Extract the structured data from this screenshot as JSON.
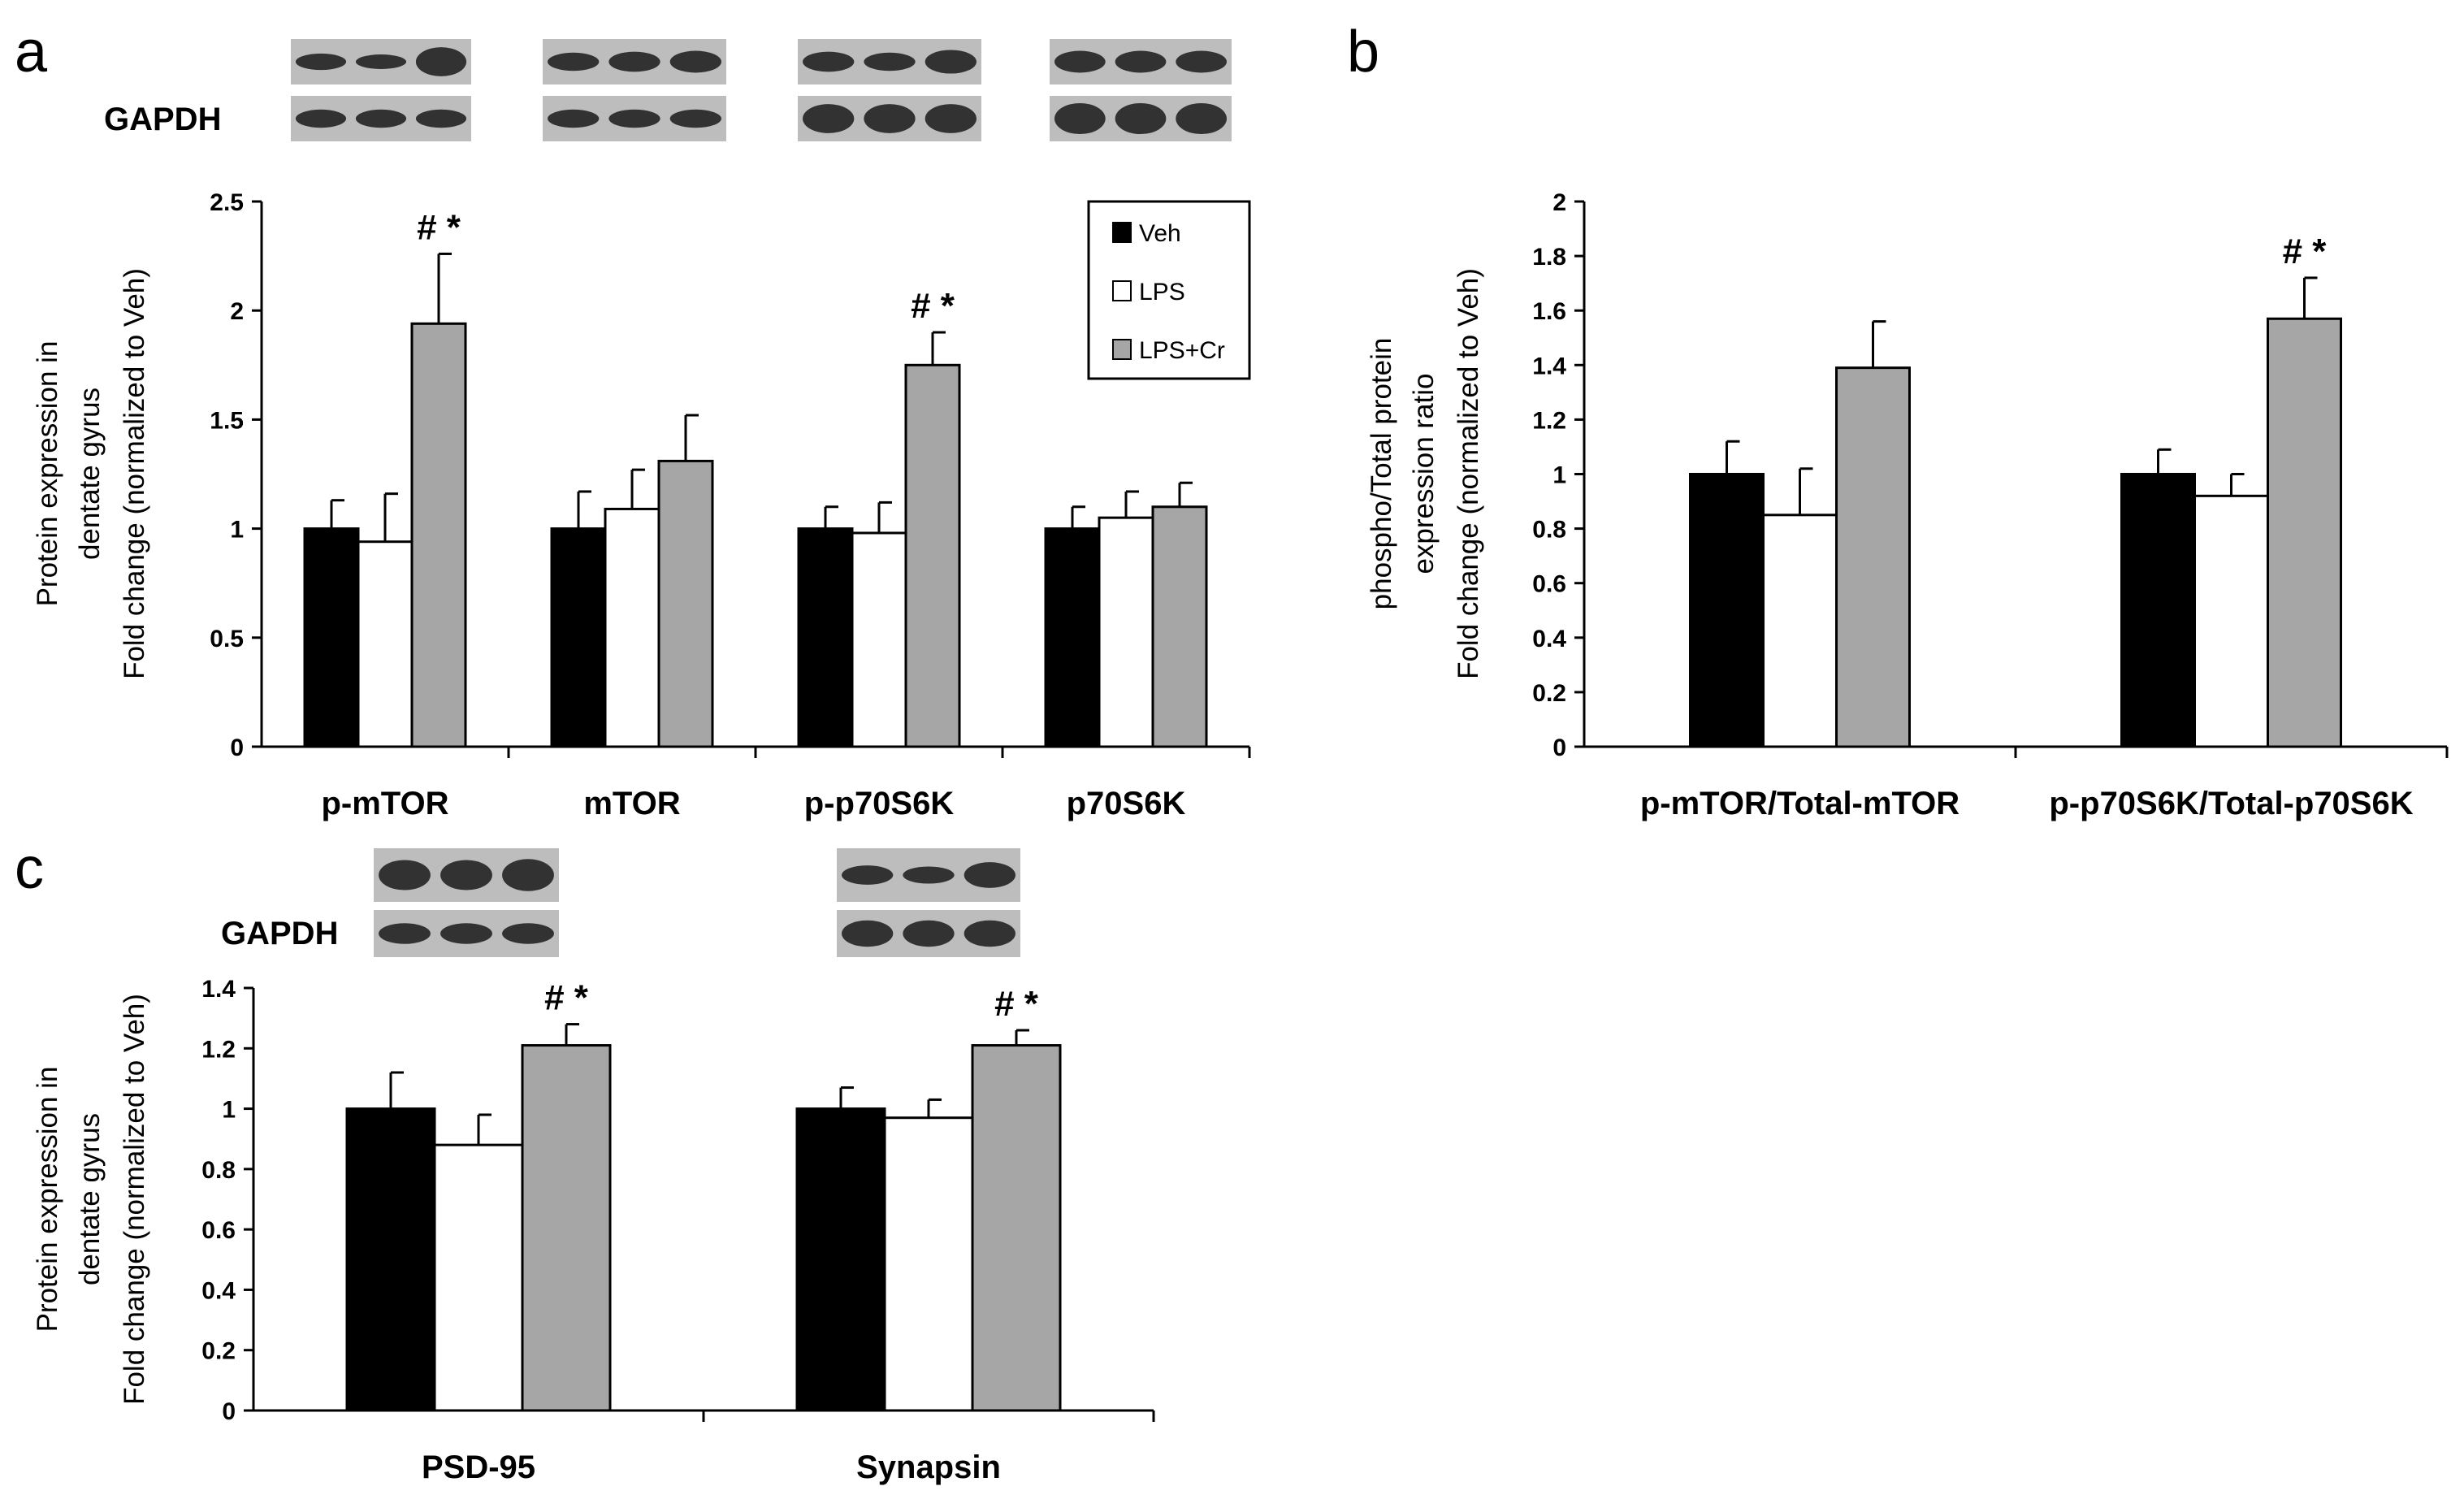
{
  "colors": {
    "Veh": "#000000",
    "LPS": "#ffffff",
    "LPS+Cr": "#a6a6a6",
    "blot_bg": "#bdbdbd",
    "band": "#1a1a1a"
  },
  "gapdh_label": "GAPDH",
  "chart_data": [
    {
      "panel": "a",
      "type": "bar",
      "categories": [
        "p-mTOR",
        "mTOR",
        "p-p70S6K",
        "p70S6K"
      ],
      "series": [
        {
          "name": "Veh",
          "values": [
            1.0,
            1.0,
            1.0,
            1.0
          ],
          "errors": [
            0.13,
            0.17,
            0.1,
            0.1
          ]
        },
        {
          "name": "LPS",
          "values": [
            0.94,
            1.09,
            0.98,
            1.05
          ],
          "errors": [
            0.22,
            0.18,
            0.14,
            0.12
          ]
        },
        {
          "name": "LPS+Cr",
          "values": [
            1.94,
            1.31,
            1.75,
            1.1
          ],
          "errors": [
            0.32,
            0.21,
            0.15,
            0.11
          ]
        }
      ],
      "significance": [
        "# *",
        "",
        "# *",
        ""
      ],
      "ylabel": [
        "Protein expression in",
        "dentate  gyrus",
        "Fold change (normalized to Veh)"
      ],
      "ylim": [
        0,
        2.5
      ],
      "yticks": [
        "0",
        "0.5",
        "1",
        "1.5",
        "2",
        "2.5"
      ],
      "legend": [
        "Veh",
        "LPS",
        "LPS+Cr"
      ],
      "legend_position": "top-right"
    },
    {
      "panel": "b",
      "type": "bar",
      "categories": [
        "p-mTOR/Total-mTOR",
        "p-p70S6K/Total-p70S6K"
      ],
      "series": [
        {
          "name": "Veh",
          "values": [
            1.0,
            1.0
          ],
          "errors": [
            0.12,
            0.09
          ]
        },
        {
          "name": "LPS",
          "values": [
            0.85,
            0.92
          ],
          "errors": [
            0.17,
            0.08
          ]
        },
        {
          "name": "LPS+Cr",
          "values": [
            1.39,
            1.57
          ],
          "errors": [
            0.17,
            0.15
          ]
        }
      ],
      "significance": [
        "",
        "# *"
      ],
      "ylabel": [
        "phospho/Total protein",
        "expression  ratio",
        "Fold change (normalized to Veh)"
      ],
      "ylim": [
        0,
        2
      ],
      "yticks": [
        "0",
        "0.2",
        "0.4",
        "0.6",
        "0.8",
        "1",
        "1.2",
        "1.4",
        "1.6",
        "1.8",
        "2"
      ]
    },
    {
      "panel": "c",
      "type": "bar",
      "categories": [
        "PSD-95",
        "Synapsin"
      ],
      "series": [
        {
          "name": "Veh",
          "values": [
            1.0,
            1.0
          ],
          "errors": [
            0.12,
            0.07
          ]
        },
        {
          "name": "LPS",
          "values": [
            0.88,
            0.97
          ],
          "errors": [
            0.1,
            0.06
          ]
        },
        {
          "name": "LPS+Cr",
          "values": [
            1.21,
            1.21
          ],
          "errors": [
            0.07,
            0.05
          ]
        }
      ],
      "significance": [
        "# *",
        "# *"
      ],
      "ylabel": [
        "Protein expression in",
        "dentate gyrus",
        "Fold change (normalized to Veh)"
      ],
      "ylim": [
        0,
        1.4
      ],
      "yticks": [
        "0",
        "0.2",
        "0.4",
        "0.6",
        "0.8",
        "1",
        "1.2",
        "1.4"
      ]
    }
  ]
}
